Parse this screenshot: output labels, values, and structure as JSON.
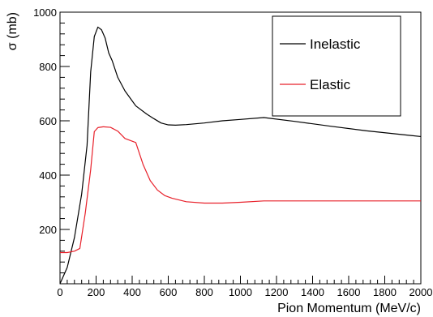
{
  "chart_data": {
    "type": "line",
    "xlabel": "Pion Momentum (MeV/c)",
    "ylabel": "σ (mb)",
    "xlim": [
      0,
      2000
    ],
    "ylim": [
      0,
      1000
    ],
    "x_ticks": [
      0,
      200,
      400,
      600,
      800,
      1000,
      1200,
      1400,
      1600,
      1800,
      2000
    ],
    "y_ticks": [
      200,
      400,
      600,
      800,
      1000
    ],
    "grid": false,
    "legend_position": "top-right",
    "series": [
      {
        "name": "Inelastic",
        "color": "#000000",
        "x": [
          0,
          40,
          80,
          120,
          150,
          170,
          190,
          210,
          230,
          250,
          270,
          290,
          320,
          360,
          420,
          480,
          520,
          560,
          600,
          640,
          700,
          800,
          900,
          1000,
          1130,
          1300,
          1500,
          1700,
          2000
        ],
        "y": [
          0,
          60,
          170,
          330,
          510,
          780,
          910,
          945,
          935,
          905,
          850,
          820,
          760,
          710,
          655,
          625,
          608,
          592,
          585,
          584,
          586,
          592,
          600,
          605,
          612,
          598,
          580,
          563,
          542
        ]
      },
      {
        "name": "Elastic",
        "color": "#e8202a",
        "x": [
          0,
          40,
          80,
          110,
          140,
          170,
          190,
          210,
          240,
          280,
          320,
          360,
          420,
          460,
          500,
          540,
          580,
          620,
          700,
          800,
          900,
          1000,
          1130,
          1300,
          1600,
          2000
        ],
        "y": [
          115,
          115,
          120,
          130,
          260,
          420,
          560,
          575,
          578,
          576,
          562,
          535,
          520,
          440,
          380,
          345,
          325,
          315,
          302,
          297,
          297,
          300,
          305,
          305,
          305,
          305
        ]
      }
    ]
  }
}
